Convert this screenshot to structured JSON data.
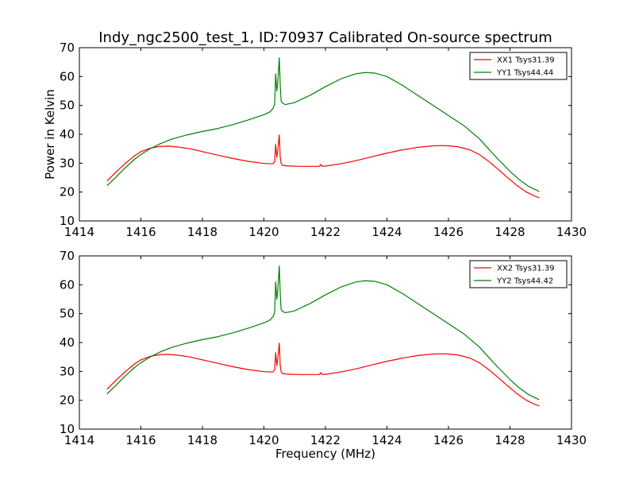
{
  "title": "Indy_ngc2500_test_1, ID:70937 Calibrated On-source spectrum",
  "chart_data": [
    {
      "type": "line",
      "title": "Indy_ngc2500_test_1, ID:70937 Calibrated On-source spectrum",
      "xlabel": "",
      "ylabel": "Power in Kelvin",
      "xlim": [
        1414,
        1430
      ],
      "ylim": [
        10,
        70
      ],
      "xticks": [
        1414,
        1416,
        1418,
        1420,
        1422,
        1424,
        1426,
        1428,
        1430
      ],
      "yticks": [
        10,
        20,
        30,
        40,
        50,
        60,
        70
      ],
      "grid": false,
      "legend_position": "top-right",
      "series": [
        {
          "name": "XX1 Tsys31.39",
          "color": "#ff0000",
          "x": [
            1414.9,
            1415.2,
            1415.5,
            1415.8,
            1416.0,
            1416.3,
            1416.6,
            1416.9,
            1417.2,
            1417.6,
            1418.0,
            1418.5,
            1419.0,
            1419.5,
            1420.0,
            1420.3,
            1420.35,
            1420.38,
            1420.42,
            1420.45,
            1420.5,
            1420.53,
            1420.56,
            1420.6,
            1420.7,
            1420.9,
            1421.2,
            1421.5,
            1421.8,
            1421.85,
            1421.88,
            1421.92,
            1422.0,
            1422.5,
            1423.0,
            1423.5,
            1424.0,
            1424.5,
            1425.0,
            1425.5,
            1425.8,
            1426.0,
            1426.3,
            1426.7,
            1427.0,
            1427.3,
            1427.6,
            1427.9,
            1428.2,
            1428.5,
            1428.8,
            1428.95
          ],
          "values": [
            23.8,
            27.0,
            30.0,
            32.6,
            34.0,
            35.2,
            35.8,
            35.9,
            35.6,
            35.0,
            34.0,
            32.8,
            31.6,
            30.6,
            29.9,
            29.8,
            30.6,
            36.5,
            32.0,
            34.5,
            39.8,
            32.0,
            29.9,
            29.3,
            29.1,
            29.0,
            28.9,
            28.9,
            28.9,
            29.6,
            28.9,
            29.0,
            29.0,
            29.8,
            30.9,
            32.2,
            33.5,
            34.6,
            35.5,
            36.0,
            36.1,
            36.0,
            35.7,
            34.6,
            33.0,
            30.7,
            28.0,
            25.2,
            22.5,
            20.2,
            18.6,
            18.0
          ]
        },
        {
          "name": "YY1 Tsys44.44",
          "color": "#008000",
          "x": [
            1414.9,
            1415.2,
            1415.5,
            1415.8,
            1416.0,
            1416.3,
            1416.6,
            1417.0,
            1417.5,
            1418.0,
            1418.5,
            1419.0,
            1419.5,
            1420.0,
            1420.2,
            1420.3,
            1420.35,
            1420.38,
            1420.42,
            1420.45,
            1420.5,
            1420.53,
            1420.56,
            1420.6,
            1420.7,
            1421.0,
            1421.5,
            1422.0,
            1422.5,
            1423.0,
            1423.3,
            1423.6,
            1424.0,
            1424.5,
            1425.0,
            1425.5,
            1426.0,
            1426.5,
            1427.0,
            1427.3,
            1427.6,
            1428.0,
            1428.3,
            1428.6,
            1428.95
          ],
          "values": [
            22.2,
            25.3,
            28.5,
            31.4,
            33.0,
            35.0,
            36.6,
            38.3,
            39.8,
            41.0,
            42.0,
            43.4,
            45.0,
            46.8,
            47.8,
            49.0,
            50.5,
            61.0,
            55.0,
            58.0,
            66.5,
            57.0,
            51.5,
            50.8,
            50.3,
            51.0,
            53.5,
            56.5,
            59.2,
            61.0,
            61.4,
            61.2,
            60.0,
            57.0,
            53.5,
            50.0,
            46.5,
            43.0,
            38.5,
            35.0,
            31.5,
            27.2,
            24.3,
            22.0,
            20.2
          ]
        }
      ]
    },
    {
      "type": "line",
      "title": "",
      "xlabel": "Frequency (MHz)",
      "ylabel": "",
      "xlim": [
        1414,
        1430
      ],
      "ylim": [
        10,
        70
      ],
      "xticks": [
        1414,
        1416,
        1418,
        1420,
        1422,
        1424,
        1426,
        1428,
        1430
      ],
      "yticks": [
        10,
        20,
        30,
        40,
        50,
        60,
        70
      ],
      "grid": false,
      "legend_position": "top-right",
      "series": [
        {
          "name": "XX2 Tsys31.39",
          "color": "#ff0000",
          "x": [
            1414.9,
            1415.2,
            1415.5,
            1415.8,
            1416.0,
            1416.3,
            1416.6,
            1416.9,
            1417.2,
            1417.6,
            1418.0,
            1418.5,
            1419.0,
            1419.5,
            1420.0,
            1420.3,
            1420.35,
            1420.38,
            1420.42,
            1420.45,
            1420.5,
            1420.53,
            1420.56,
            1420.6,
            1420.7,
            1420.9,
            1421.2,
            1421.5,
            1421.8,
            1421.85,
            1421.88,
            1421.92,
            1422.0,
            1422.5,
            1423.0,
            1423.5,
            1424.0,
            1424.5,
            1425.0,
            1425.5,
            1425.8,
            1426.0,
            1426.3,
            1426.7,
            1427.0,
            1427.3,
            1427.6,
            1427.9,
            1428.2,
            1428.5,
            1428.8,
            1428.95
          ],
          "values": [
            23.8,
            27.0,
            30.0,
            32.6,
            34.0,
            35.2,
            35.8,
            35.9,
            35.6,
            35.0,
            34.0,
            32.8,
            31.6,
            30.6,
            29.9,
            29.8,
            30.6,
            36.5,
            32.0,
            34.5,
            39.8,
            32.0,
            29.9,
            29.3,
            29.1,
            29.0,
            28.9,
            28.9,
            28.9,
            29.6,
            28.9,
            29.0,
            29.0,
            29.8,
            30.9,
            32.2,
            33.5,
            34.6,
            35.5,
            36.0,
            36.1,
            36.0,
            35.7,
            34.6,
            33.0,
            30.7,
            28.0,
            25.2,
            22.5,
            20.2,
            18.6,
            18.0
          ]
        },
        {
          "name": "YY2 Tsys44.42",
          "color": "#008000",
          "x": [
            1414.9,
            1415.2,
            1415.5,
            1415.8,
            1416.0,
            1416.3,
            1416.6,
            1417.0,
            1417.5,
            1418.0,
            1418.5,
            1419.0,
            1419.5,
            1420.0,
            1420.2,
            1420.3,
            1420.35,
            1420.38,
            1420.42,
            1420.45,
            1420.5,
            1420.53,
            1420.56,
            1420.6,
            1420.7,
            1421.0,
            1421.5,
            1422.0,
            1422.5,
            1423.0,
            1423.3,
            1423.6,
            1424.0,
            1424.5,
            1425.0,
            1425.5,
            1426.0,
            1426.5,
            1427.0,
            1427.3,
            1427.6,
            1428.0,
            1428.3,
            1428.6,
            1428.95
          ],
          "values": [
            22.2,
            25.3,
            28.5,
            31.4,
            33.0,
            35.0,
            36.6,
            38.3,
            39.8,
            41.0,
            42.0,
            43.4,
            45.0,
            46.8,
            47.8,
            49.0,
            50.5,
            61.0,
            55.0,
            58.0,
            66.5,
            57.0,
            51.5,
            50.8,
            50.3,
            51.0,
            53.5,
            56.5,
            59.2,
            61.0,
            61.4,
            61.2,
            60.0,
            57.0,
            53.5,
            50.0,
            46.5,
            43.0,
            38.5,
            35.0,
            31.5,
            27.2,
            24.3,
            22.0,
            20.2
          ]
        }
      ]
    }
  ]
}
